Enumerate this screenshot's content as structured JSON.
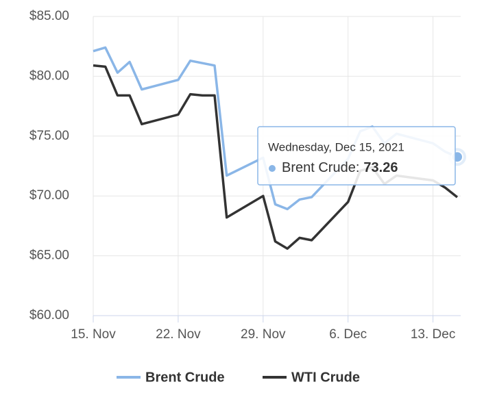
{
  "chart_data": {
    "type": "line",
    "x": [
      "2021-11-15",
      "2021-11-16",
      "2021-11-17",
      "2021-11-18",
      "2021-11-19",
      "2021-11-22",
      "2021-11-23",
      "2021-11-24",
      "2021-11-25",
      "2021-11-26",
      "2021-11-29",
      "2021-11-30",
      "2021-12-01",
      "2021-12-02",
      "2021-12-03",
      "2021-12-06",
      "2021-12-07",
      "2021-12-08",
      "2021-12-09",
      "2021-12-10",
      "2021-12-13",
      "2021-12-14",
      "2021-12-15"
    ],
    "series": [
      {
        "name": "Brent Crude",
        "color": "#8ab6e7",
        "values": [
          82.1,
          82.4,
          80.3,
          81.2,
          78.9,
          79.7,
          81.3,
          81.1,
          80.9,
          71.7,
          73.2,
          69.3,
          68.9,
          69.7,
          69.9,
          73.1,
          75.4,
          75.8,
          74.4,
          75.2,
          74.4,
          73.7,
          73.26
        ]
      },
      {
        "name": "WTI Crude",
        "color": "#333333",
        "values": [
          80.9,
          80.8,
          78.4,
          78.4,
          76.0,
          76.8,
          78.5,
          78.4,
          78.4,
          68.2,
          70.0,
          66.2,
          65.6,
          66.5,
          66.3,
          69.5,
          72.1,
          72.4,
          71.0,
          71.7,
          71.3,
          70.7,
          69.9
        ]
      }
    ],
    "ylim": [
      60,
      85
    ],
    "yticks": [
      {
        "value": 60,
        "label": "$60.00"
      },
      {
        "value": 65,
        "label": "$65.00"
      },
      {
        "value": 70,
        "label": "$70.00"
      },
      {
        "value": 75,
        "label": "$75.00"
      },
      {
        "value": 80,
        "label": "$80.00"
      },
      {
        "value": 85,
        "label": "$85.00"
      }
    ],
    "xlim": [
      "2021-11-15",
      "2021-12-15"
    ],
    "xticks": [
      {
        "value": "2021-11-15",
        "label": "15. Nov"
      },
      {
        "value": "2021-11-22",
        "label": "22. Nov"
      },
      {
        "value": "2021-11-29",
        "label": "29. Nov"
      },
      {
        "value": "2021-12-06",
        "label": "6. Dec"
      },
      {
        "value": "2021-12-13",
        "label": "13. Dec"
      }
    ],
    "grid": true,
    "legend": "bottom",
    "tooltip": {
      "header": "Wednesday, Dec 15, 2021",
      "label": "Brent Crude:",
      "series": 0,
      "index": 22
    }
  }
}
